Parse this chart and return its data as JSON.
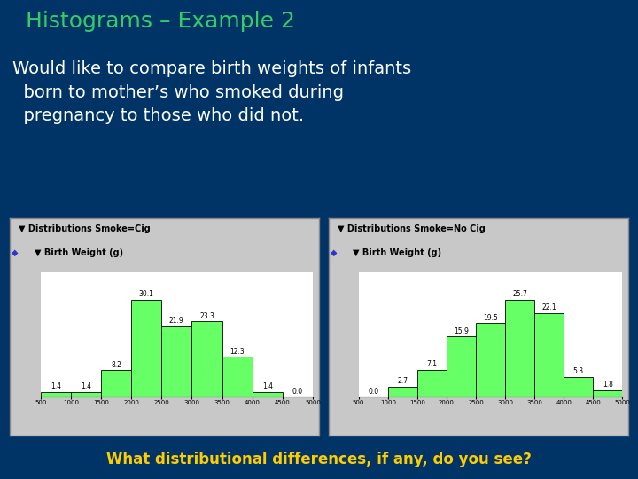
{
  "bg_color": "#003366",
  "title": "Histograms – Example 2",
  "title_color": "#33cc66",
  "body_text": "Would like to compare birth weights of infants\n  born to mother’s who smoked during\n  pregnancy to those who did not.",
  "body_color": "#ffffff",
  "footer_text": "What distributional differences, if any, do you see?",
  "footer_color": "#ffcc00",
  "categories": [
    500,
    1000,
    1500,
    2000,
    2500,
    3000,
    3500,
    4000,
    4500,
    5000
  ],
  "smoke_values": [
    1.4,
    1.4,
    8.2,
    30.1,
    21.9,
    23.3,
    12.3,
    1.4,
    0.0
  ],
  "nosmoke_values": [
    0.0,
    2.7,
    7.1,
    15.9,
    19.5,
    25.7,
    22.1,
    5.3,
    1.8
  ],
  "smoke_label": "Distributions Smoke=Cig",
  "nosmoke_label": "Distributions Smoke=No Cig",
  "sublabel": "Birth Weight (g)",
  "bar_color": "#66ff66",
  "bar_edge_color": "#000000",
  "panel_bg": "#c8c8c8",
  "hist_bg": "#ffffff",
  "panel_border": "#888888",
  "title_fontsize": 18,
  "body_fontsize": 14,
  "footer_fontsize": 12,
  "panel_label_fontsize": 7,
  "hist_label_fontsize": 5.5,
  "xtick_fontsize": 5
}
